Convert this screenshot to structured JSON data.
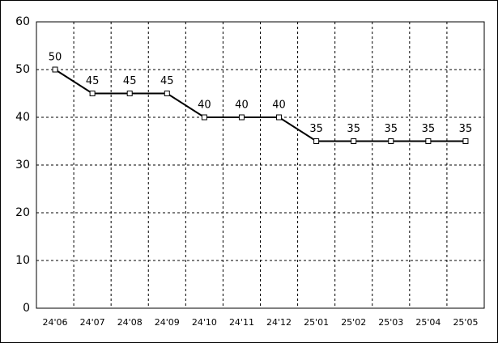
{
  "chart_data": {
    "type": "line",
    "categories": [
      "24'06",
      "24'07",
      "24'08",
      "24'09",
      "24'10",
      "24'11",
      "24'12",
      "25'01",
      "25'02",
      "25'03",
      "25'04",
      "25'05"
    ],
    "values": [
      50,
      45,
      45,
      45,
      40,
      40,
      40,
      35,
      35,
      35,
      35,
      35
    ],
    "color": "#000000",
    "ylim": [
      0,
      60
    ],
    "yticks": [
      0,
      10,
      20,
      30,
      40,
      50,
      60
    ],
    "grid": true
  }
}
